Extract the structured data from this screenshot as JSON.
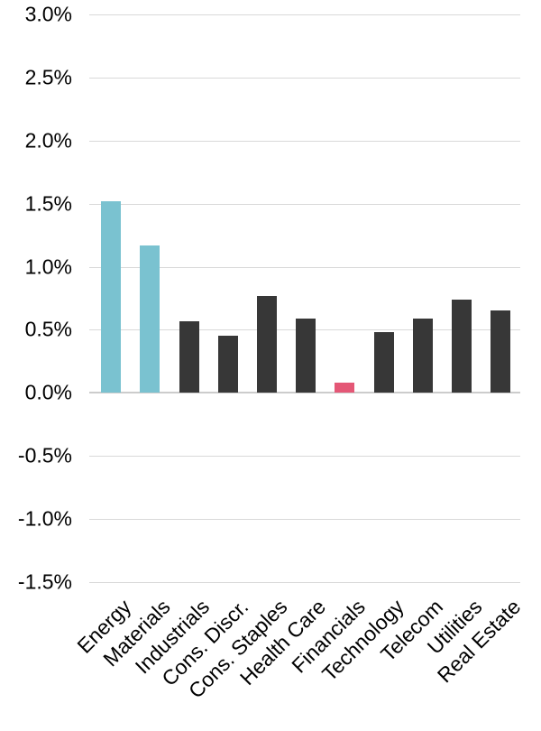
{
  "chart_data": {
    "type": "bar",
    "title": "",
    "xlabel": "",
    "ylabel": "",
    "categories": [
      "Energy",
      "Materials",
      "Industrials",
      "Cons. Discr.",
      "Cons. Staples",
      "Health Care",
      "Financials",
      "Technology",
      "Telecom",
      "Utilities",
      "Real Estate"
    ],
    "values": [
      1.52,
      1.17,
      0.57,
      0.45,
      0.77,
      0.59,
      0.08,
      0.48,
      0.59,
      0.74,
      0.65
    ],
    "unit": "%",
    "bar_colors": [
      "#7ac2d0",
      "#7ac2d0",
      "#373737",
      "#373737",
      "#373737",
      "#373737",
      "#e45776",
      "#373737",
      "#373737",
      "#373737",
      "#373737"
    ],
    "ylim": [
      -1.5,
      3.0
    ],
    "y_tick_values": [
      3.0,
      2.5,
      2.0,
      1.5,
      1.0,
      0.5,
      0.0,
      -0.5,
      -1.0,
      -1.5
    ],
    "y_tick_labels": [
      "3.0%",
      "2.5%",
      "2.0%",
      "1.5%",
      "1.0%",
      "0.5%",
      "0.0%",
      "-0.5%",
      "-1.0%",
      "-1.5%"
    ],
    "grid": true,
    "legend_position": "none",
    "colors": {
      "highlight_positive": "#7ac2d0",
      "default_bar": "#373737",
      "highlight_accent": "#e45776",
      "gridline": "#d9d9d9",
      "zero_axis": "#cccccc",
      "text": "#000000",
      "background": "#ffffff"
    }
  }
}
